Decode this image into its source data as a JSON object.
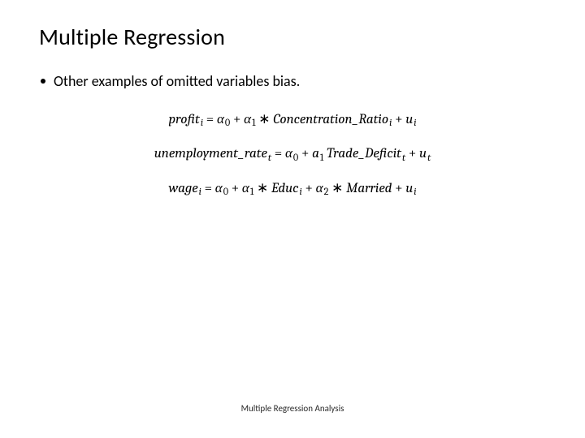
{
  "colors": {
    "background": "#ffffff",
    "text": "#000000",
    "footer": "#2a2a2a",
    "bullet": "#000000"
  },
  "typography": {
    "title_fontsize": 28,
    "body_fontsize": 18,
    "equation_fontsize": 17,
    "footer_fontsize": 11,
    "equation_font": "Cambria/serif",
    "body_font": "Calibri/sans-serif"
  },
  "title": "Multiple Regression",
  "bullet": "Other examples of omitted variables bias.",
  "equations": {
    "eq1": {
      "lhs_var": "profit",
      "lhs_sub": "i",
      "a0": "α",
      "a0_sub": "0",
      "a1": "α",
      "a1_sub": "1",
      "star1": "∗",
      "x1": "Concentration_Ratio",
      "x1_sub": "i",
      "err": "u",
      "err_sub": "i"
    },
    "eq2": {
      "lhs_var": "unemployment_rate",
      "lhs_sub": "t",
      "a0": "α",
      "a0_sub": "0",
      "a1": "a",
      "a1_sub": "1",
      "x1": "Trade_Deficit",
      "x1_sub": "t",
      "err": "u",
      "err_sub": "t"
    },
    "eq3": {
      "lhs_var": "wage",
      "lhs_sub": "i",
      "a0": "α",
      "a0_sub": "0",
      "a1": "α",
      "a1_sub": "1",
      "star1": "∗",
      "x1": "Educ",
      "x1_sub": "i",
      "a2": "α",
      "a2_sub": "2",
      "star2": "∗",
      "x2": "Married",
      "err": "u",
      "err_sub": "i"
    }
  },
  "footer": "Multiple Regression Analysis"
}
